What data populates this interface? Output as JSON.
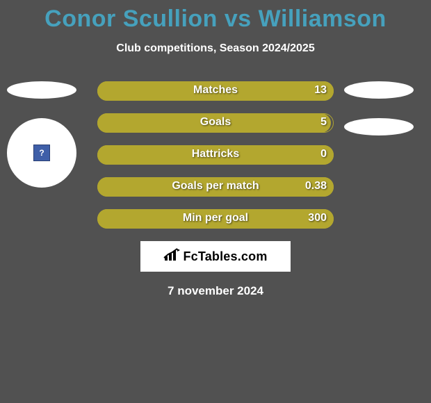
{
  "title": "Conor Scullion vs Williamson",
  "subtitle": "Club competitions, Season 2024/2025",
  "colors": {
    "title": "#46a1bd",
    "bar_fill": "#b3a72f",
    "bar_border": "#b3a72f",
    "background": "#515151",
    "text": "#ffffff",
    "badge_bg": "#3f5fa8"
  },
  "bars": [
    {
      "label": "Matches",
      "value": "13",
      "fill_width": 340
    },
    {
      "label": "Goals",
      "value": "5",
      "fill_width": 336
    },
    {
      "label": "Hattricks",
      "value": "0",
      "fill_width": 340
    },
    {
      "label": "Goals per match",
      "value": "0.38",
      "fill_width": 340
    },
    {
      "label": "Min per goal",
      "value": "300",
      "fill_width": 340
    }
  ],
  "badge_glyph": "?",
  "brand": "FcTables.com",
  "date": "7 november 2024"
}
